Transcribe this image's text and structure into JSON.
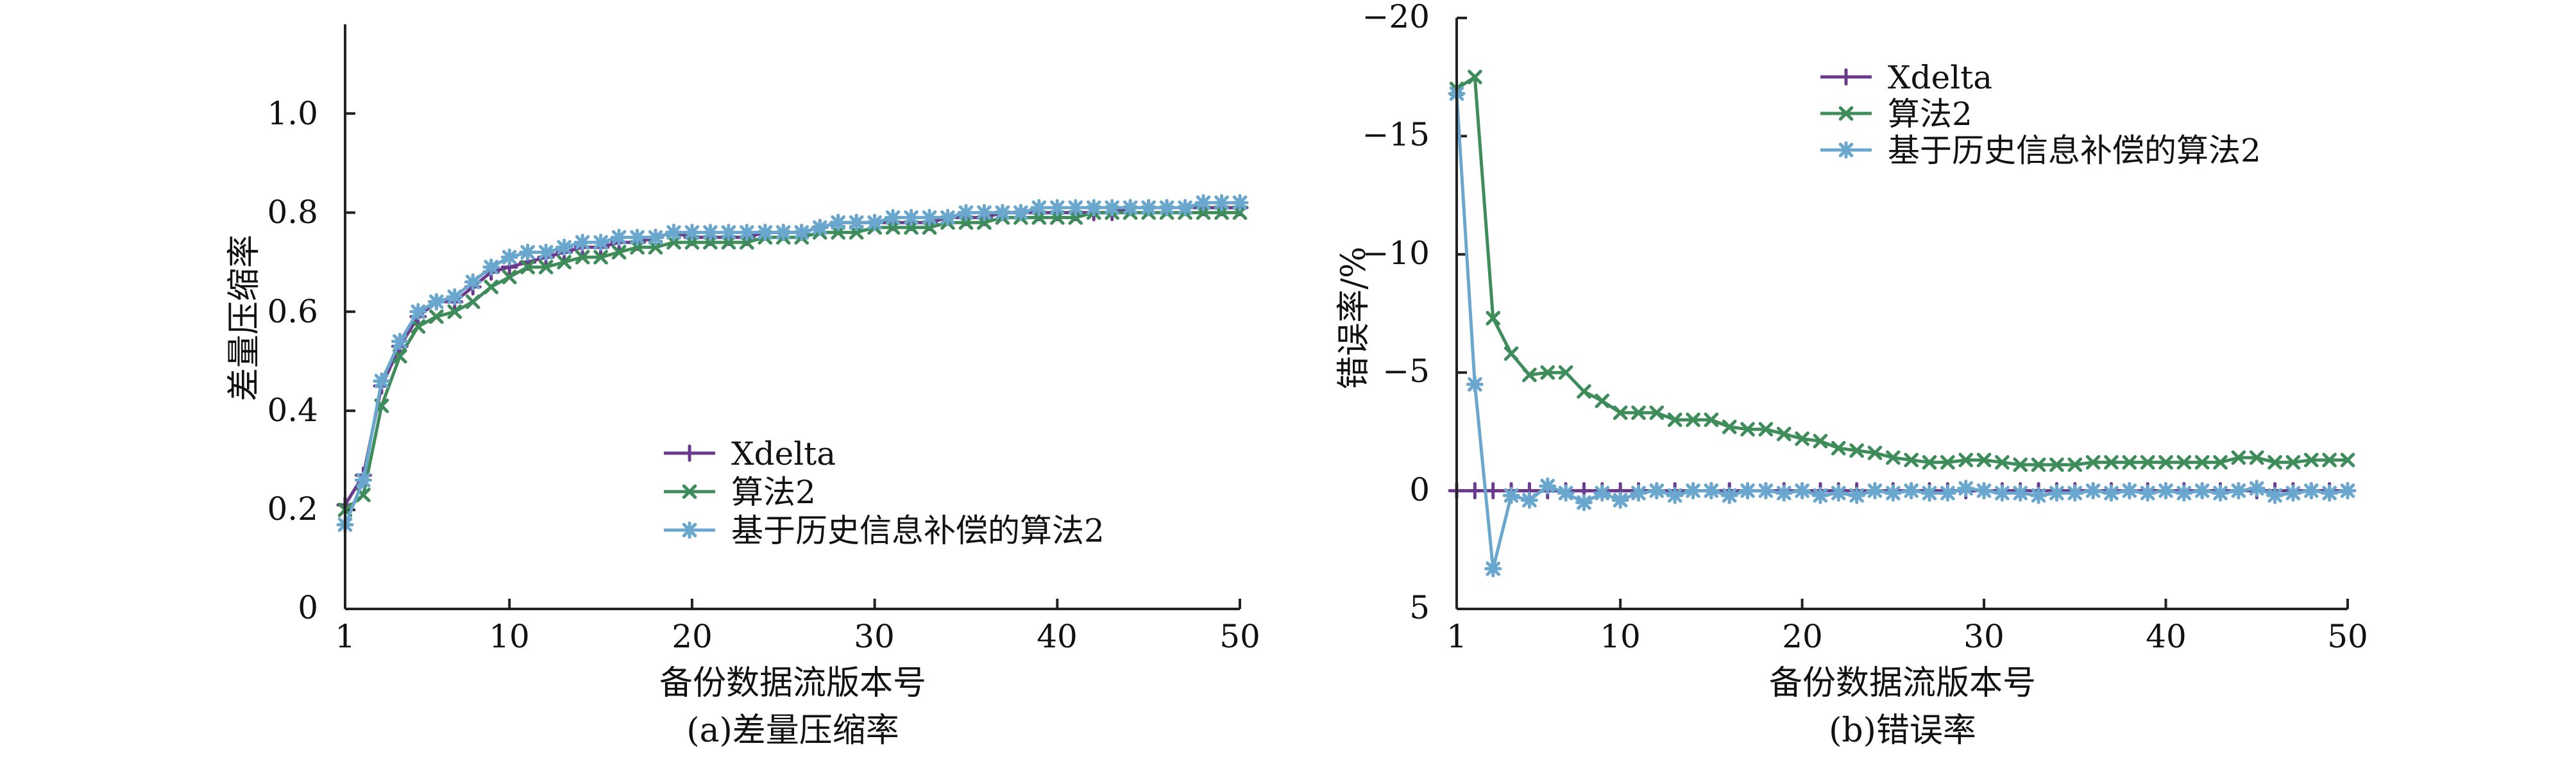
{
  "chart_data": [
    {
      "type": "line",
      "caption": "(a)差量压缩率",
      "xlabel": "备份数据流版本号",
      "ylabel": "差量压缩率",
      "xlim": [
        1,
        50
      ],
      "ylim": [
        0,
        1.18
      ],
      "x_ticks": [
        1,
        10,
        20,
        30,
        40,
        50
      ],
      "y_ticks": [
        0,
        0.2,
        0.4,
        0.6,
        0.8,
        1.0
      ],
      "y_tick_labels": [
        "0",
        "0.2",
        "0.4",
        "0.6",
        "0.8",
        "1.0"
      ],
      "y_inverted": false,
      "legend_position": "lower-center",
      "x": [
        1,
        2,
        3,
        4,
        5,
        6,
        7,
        8,
        9,
        10,
        11,
        12,
        13,
        14,
        15,
        16,
        17,
        18,
        19,
        20,
        21,
        22,
        23,
        24,
        25,
        26,
        27,
        28,
        29,
        30,
        31,
        32,
        33,
        34,
        35,
        36,
        37,
        38,
        39,
        40,
        41,
        42,
        43,
        44,
        45,
        46,
        47,
        48,
        49,
        50
      ],
      "series": [
        {
          "name": "Xdelta",
          "color": "#6b3a8c",
          "marker": "plus",
          "values": [
            0.21,
            0.27,
            0.45,
            0.53,
            0.59,
            0.62,
            0.62,
            0.65,
            0.68,
            0.69,
            0.7,
            0.71,
            0.72,
            0.73,
            0.73,
            0.74,
            0.74,
            0.75,
            0.76,
            0.75,
            0.75,
            0.75,
            0.75,
            0.76,
            0.76,
            0.76,
            0.77,
            0.78,
            0.78,
            0.78,
            0.78,
            0.78,
            0.78,
            0.79,
            0.79,
            0.79,
            0.8,
            0.8,
            0.8,
            0.8,
            0.8,
            0.8,
            0.8,
            0.81,
            0.81,
            0.81,
            0.81,
            0.81,
            0.81,
            0.81
          ]
        },
        {
          "name": "算法2",
          "color": "#3d8c5a",
          "marker": "x",
          "values": [
            0.2,
            0.23,
            0.41,
            0.51,
            0.57,
            0.59,
            0.6,
            0.62,
            0.65,
            0.67,
            0.69,
            0.69,
            0.7,
            0.71,
            0.71,
            0.72,
            0.73,
            0.73,
            0.74,
            0.74,
            0.74,
            0.74,
            0.74,
            0.75,
            0.75,
            0.75,
            0.76,
            0.76,
            0.76,
            0.77,
            0.77,
            0.77,
            0.77,
            0.78,
            0.78,
            0.78,
            0.79,
            0.79,
            0.79,
            0.79,
            0.79,
            0.8,
            0.8,
            0.8,
            0.8,
            0.8,
            0.8,
            0.8,
            0.8,
            0.8
          ]
        },
        {
          "name": "基于历史信息补偿的算法2",
          "color": "#6aa7cf",
          "marker": "asterisk",
          "values": [
            0.17,
            0.26,
            0.46,
            0.54,
            0.6,
            0.62,
            0.63,
            0.66,
            0.69,
            0.71,
            0.72,
            0.72,
            0.73,
            0.74,
            0.74,
            0.75,
            0.75,
            0.75,
            0.76,
            0.76,
            0.76,
            0.76,
            0.76,
            0.76,
            0.76,
            0.76,
            0.77,
            0.78,
            0.78,
            0.78,
            0.79,
            0.79,
            0.79,
            0.79,
            0.8,
            0.8,
            0.8,
            0.8,
            0.81,
            0.81,
            0.81,
            0.81,
            0.81,
            0.81,
            0.81,
            0.81,
            0.81,
            0.82,
            0.82,
            0.82
          ]
        }
      ]
    },
    {
      "type": "line",
      "caption": "(b)错误率",
      "xlabel": "备份数据流版本号",
      "ylabel": "错误率/%",
      "xlim": [
        1,
        50
      ],
      "ylim": [
        -20,
        5
      ],
      "x_ticks": [
        1,
        10,
        20,
        30,
        40,
        50
      ],
      "y_ticks": [
        -20,
        -15,
        -10,
        -5,
        0,
        5
      ],
      "y_tick_labels": [
        "−20",
        "−15",
        "−10",
        "−5",
        "0",
        "5"
      ],
      "y_inverted": true,
      "legend_position": "top-center",
      "x": [
        1,
        2,
        3,
        4,
        5,
        6,
        7,
        8,
        9,
        10,
        11,
        12,
        13,
        14,
        15,
        16,
        17,
        18,
        19,
        20,
        21,
        22,
        23,
        24,
        25,
        26,
        27,
        28,
        29,
        30,
        31,
        32,
        33,
        34,
        35,
        36,
        37,
        38,
        39,
        40,
        41,
        42,
        43,
        44,
        45,
        46,
        47,
        48,
        49,
        50
      ],
      "series": [
        {
          "name": "Xdelta",
          "color": "#6b3a8c",
          "marker": "plus",
          "values": [
            0,
            0,
            0,
            0,
            0,
            0,
            0,
            0,
            0,
            0,
            0,
            0,
            0,
            0,
            0,
            0,
            0,
            0,
            0,
            0,
            0,
            0,
            0,
            0,
            0,
            0,
            0,
            0,
            0,
            0,
            0,
            0,
            0,
            0,
            0,
            0,
            0,
            0,
            0,
            0,
            0,
            0,
            0,
            0,
            0,
            0,
            0,
            0,
            0,
            0
          ]
        },
        {
          "name": "算法2",
          "color": "#3d8c5a",
          "marker": "x",
          "values": [
            -17.0,
            -17.5,
            -7.3,
            -5.8,
            -4.9,
            -5.0,
            -5.0,
            -4.2,
            -3.8,
            -3.3,
            -3.3,
            -3.3,
            -3.0,
            -3.0,
            -3.0,
            -2.7,
            -2.6,
            -2.6,
            -2.4,
            -2.2,
            -2.1,
            -1.8,
            -1.7,
            -1.6,
            -1.4,
            -1.3,
            -1.2,
            -1.2,
            -1.3,
            -1.3,
            -1.2,
            -1.1,
            -1.1,
            -1.1,
            -1.1,
            -1.2,
            -1.2,
            -1.2,
            -1.2,
            -1.2,
            -1.2,
            -1.2,
            -1.2,
            -1.4,
            -1.4,
            -1.2,
            -1.2,
            -1.3,
            -1.3,
            -1.3
          ]
        },
        {
          "name": "基于历史信息补偿的算法2",
          "color": "#6aa7cf",
          "marker": "asterisk",
          "values": [
            -16.8,
            -4.5,
            3.3,
            0.2,
            0.4,
            -0.2,
            0.1,
            0.5,
            0.1,
            0.4,
            0.1,
            0.0,
            0.2,
            0.0,
            0.0,
            0.2,
            0.0,
            0.0,
            0.1,
            0.0,
            0.2,
            0.1,
            0.2,
            0.0,
            0.1,
            0.0,
            0.1,
            0.1,
            -0.1,
            0.0,
            0.1,
            0.1,
            0.2,
            0.1,
            0.1,
            0.0,
            0.1,
            0.0,
            0.1,
            0.0,
            0.1,
            0.0,
            0.1,
            0.0,
            -0.1,
            0.2,
            0.1,
            0.0,
            0.1,
            0.0
          ]
        }
      ]
    }
  ]
}
